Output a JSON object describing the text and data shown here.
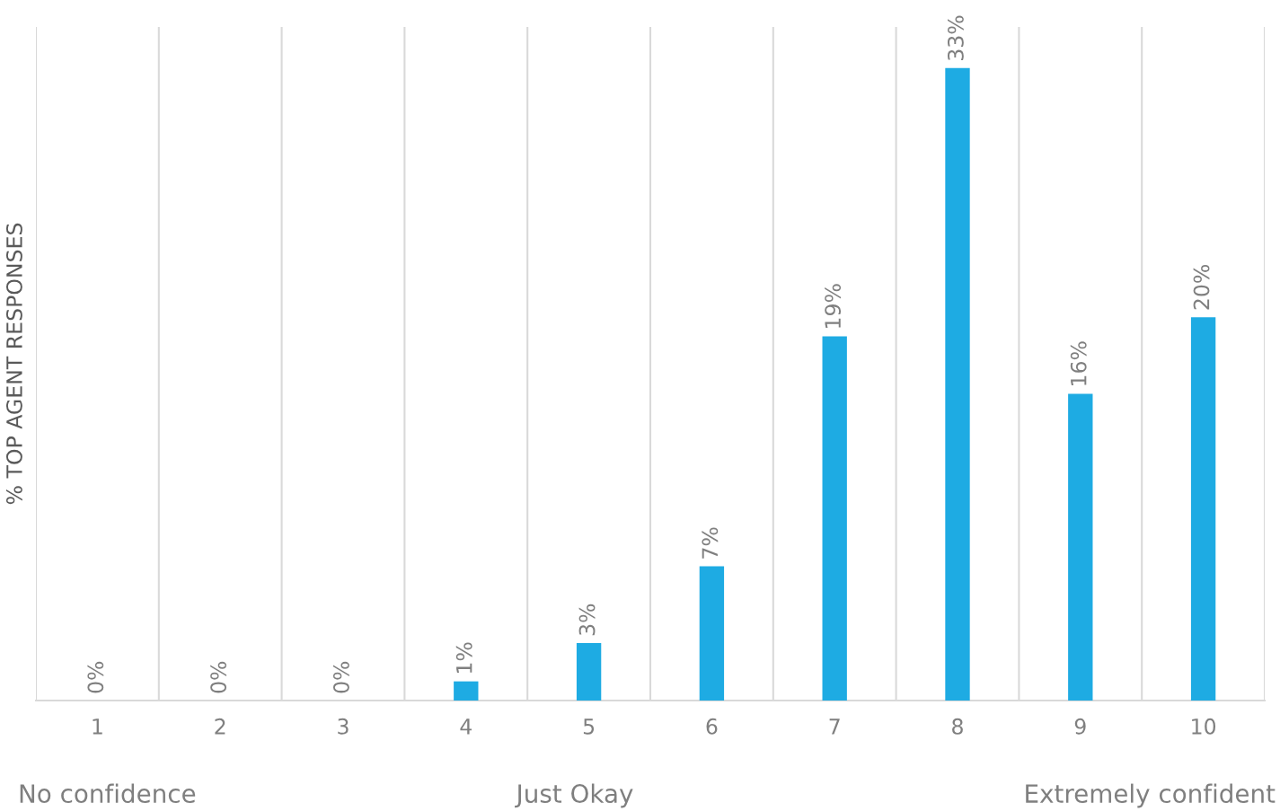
{
  "chart_data": {
    "type": "bar",
    "ylabel": "% TOP AGENT RESPONSES",
    "categories": [
      "1",
      "2",
      "3",
      "4",
      "5",
      "6",
      "7",
      "8",
      "9",
      "10"
    ],
    "values": [
      0,
      0,
      0,
      1,
      3,
      7,
      19,
      33,
      16,
      20
    ],
    "value_labels": [
      "0%",
      "0%",
      "0%",
      "1%",
      "3%",
      "7%",
      "19%",
      "33%",
      "16%",
      "20%"
    ],
    "color": "#1eabe3",
    "grid": "x",
    "annotations": [
      "No confidence",
      "Just Okay",
      "Extremely confident"
    ]
  }
}
